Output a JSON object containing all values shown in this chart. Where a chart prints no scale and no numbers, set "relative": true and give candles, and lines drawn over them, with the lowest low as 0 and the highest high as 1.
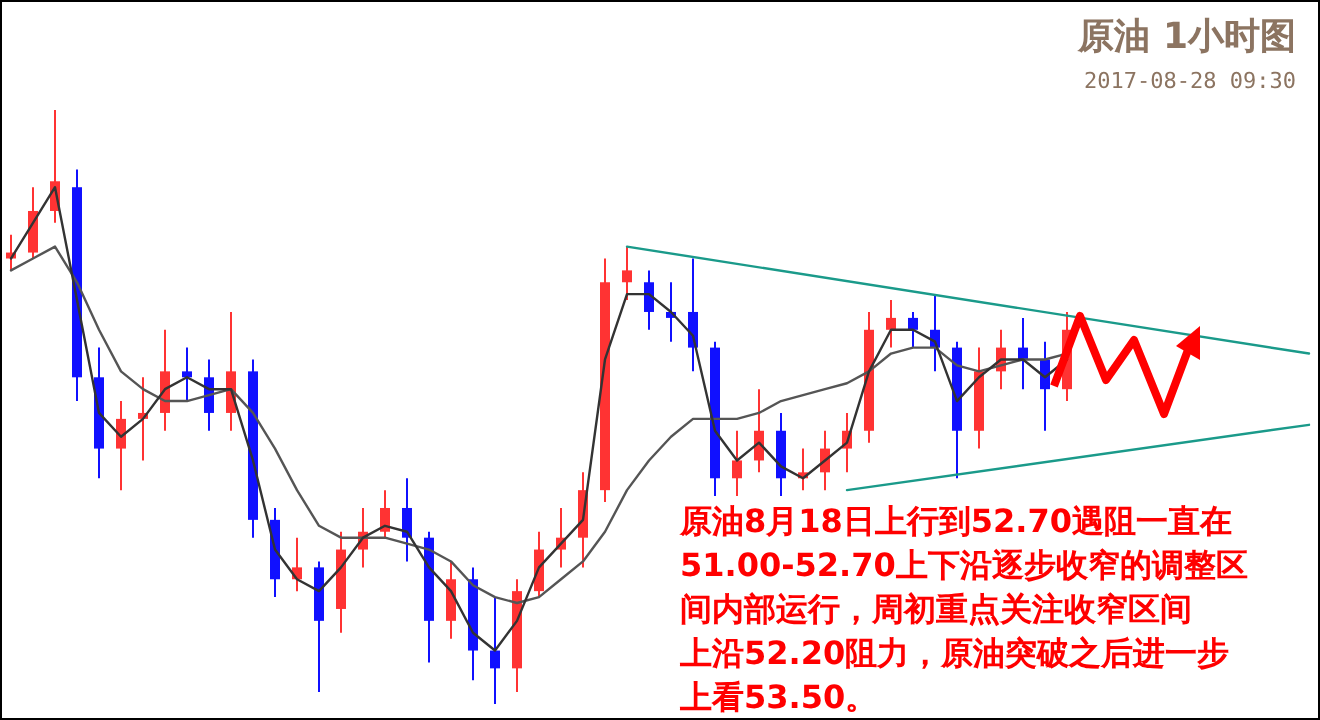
{
  "chart_data": {
    "type": "candlestick",
    "relative": true,
    "title": "原油 1小时图",
    "subtitle": "2017-08-28 09:30",
    "categories": [
      null,
      null,
      null,
      null,
      null,
      null,
      null,
      null,
      null,
      null,
      null,
      null,
      null,
      null,
      null,
      null,
      null,
      null,
      null,
      null,
      null,
      null,
      null,
      null,
      null,
      null,
      null,
      null,
      null,
      null,
      null,
      null,
      null,
      null,
      null,
      null,
      null,
      null,
      null,
      null,
      null,
      null,
      null,
      null,
      null,
      null,
      null,
      null,
      null,
      null,
      null,
      null,
      null,
      null,
      null,
      null,
      null,
      null,
      null,
      null
    ],
    "ohlc": [
      [
        0.75,
        0.79,
        0.73,
        0.76
      ],
      [
        0.76,
        0.87,
        0.75,
        0.83
      ],
      [
        0.83,
        1.0,
        0.81,
        0.88
      ],
      [
        0.87,
        0.9,
        0.51,
        0.55
      ],
      [
        0.55,
        0.6,
        0.38,
        0.43
      ],
      [
        0.43,
        0.51,
        0.36,
        0.48
      ],
      [
        0.48,
        0.55,
        0.41,
        0.49
      ],
      [
        0.49,
        0.63,
        0.46,
        0.56
      ],
      [
        0.56,
        0.6,
        0.51,
        0.55
      ],
      [
        0.55,
        0.58,
        0.46,
        0.49
      ],
      [
        0.49,
        0.66,
        0.46,
        0.56
      ],
      [
        0.56,
        0.58,
        0.28,
        0.31
      ],
      [
        0.31,
        0.33,
        0.18,
        0.21
      ],
      [
        0.21,
        0.28,
        0.19,
        0.23
      ],
      [
        0.23,
        0.24,
        0.02,
        0.14
      ],
      [
        0.16,
        0.29,
        0.12,
        0.26
      ],
      [
        0.26,
        0.33,
        0.23,
        0.29
      ],
      [
        0.29,
        0.36,
        0.28,
        0.33
      ],
      [
        0.33,
        0.38,
        0.24,
        0.28
      ],
      [
        0.28,
        0.29,
        0.07,
        0.14
      ],
      [
        0.14,
        0.24,
        0.11,
        0.21
      ],
      [
        0.21,
        0.23,
        0.04,
        0.09
      ],
      [
        0.09,
        0.18,
        0,
        0.06
      ],
      [
        0.06,
        0.21,
        0.02,
        0.19
      ],
      [
        0.19,
        0.29,
        0.18,
        0.26
      ],
      [
        0.26,
        0.33,
        0.23,
        0.28
      ],
      [
        0.28,
        0.39,
        0.23,
        0.36
      ],
      [
        0.36,
        0.75,
        0.34,
        0.71
      ],
      [
        0.71,
        0.77,
        0.68,
        0.73
      ],
      [
        0.71,
        0.73,
        0.63,
        0.66
      ],
      [
        0.66,
        0.71,
        0.61,
        0.65
      ],
      [
        0.66,
        0.75,
        0.56,
        0.6
      ],
      [
        0.6,
        0.61,
        0.35,
        0.38
      ],
      [
        0.38,
        0.46,
        0.35,
        0.41
      ],
      [
        0.41,
        0.53,
        0.39,
        0.46
      ],
      [
        0.46,
        0.49,
        0.35,
        0.38
      ],
      [
        0.38,
        0.43,
        0.36,
        0.39
      ],
      [
        0.39,
        0.46,
        0.36,
        0.43
      ],
      [
        0.43,
        0.49,
        0.39,
        0.46
      ],
      [
        0.46,
        0.66,
        0.44,
        0.63
      ],
      [
        0.63,
        0.68,
        0.6,
        0.65
      ],
      [
        0.65,
        0.66,
        0.6,
        0.63
      ],
      [
        0.63,
        0.69,
        0.56,
        0.6
      ],
      [
        0.6,
        0.61,
        0.38,
        0.46
      ],
      [
        0.46,
        0.6,
        0.43,
        0.56
      ],
      [
        0.56,
        0.63,
        0.53,
        0.6
      ],
      [
        0.6,
        0.65,
        0.53,
        0.58
      ],
      [
        0.58,
        0.61,
        0.46,
        0.53
      ],
      [
        0.53,
        0.66,
        0.51,
        0.63
      ],
      null,
      null,
      null,
      null,
      null,
      null,
      null,
      null,
      null,
      null,
      null
    ],
    "series": [
      {
        "type": "line",
        "color": "#555555",
        "values": [
          0.73,
          0.75,
          0.77,
          0.71,
          0.63,
          0.56,
          0.53,
          0.51,
          0.51,
          0.52,
          0.53,
          0.49,
          0.43,
          0.36,
          0.3,
          0.28,
          0.28,
          0.28,
          0.27,
          0.26,
          0.24,
          0.2,
          0.18,
          0.17,
          0.18,
          0.21,
          0.24,
          0.29,
          0.36,
          0.41,
          0.45,
          0.48,
          0.48,
          0.48,
          0.49,
          0.51,
          0.52,
          0.53,
          0.54,
          0.56,
          0.59,
          0.6,
          0.6,
          0.57,
          0.56,
          0.57,
          0.58,
          0.58,
          0.59,
          null,
          null,
          null,
          null,
          null,
          null,
          null,
          null,
          null,
          null,
          null
        ]
      },
      {
        "type": "line",
        "color": "#333333",
        "values": [
          0.75,
          0.81,
          0.87,
          0.68,
          0.49,
          0.45,
          0.48,
          0.53,
          0.55,
          0.53,
          0.53,
          0.41,
          0.26,
          0.21,
          0.19,
          0.23,
          0.28,
          0.3,
          0.29,
          0.23,
          0.19,
          0.12,
          0.09,
          0.14,
          0.23,
          0.27,
          0.31,
          0.58,
          0.69,
          0.69,
          0.66,
          0.62,
          0.46,
          0.41,
          0.44,
          0.4,
          0.38,
          0.41,
          0.44,
          0.56,
          0.63,
          0.63,
          0.61,
          0.51,
          0.55,
          0.58,
          0.58,
          0.55,
          0.58,
          null,
          null,
          null,
          null,
          null,
          null,
          null,
          null,
          null,
          null,
          null
        ]
      },
      {
        "type": "line",
        "color": "#1a9a8a",
        "values": [
          null,
          null,
          null,
          null,
          null,
          null,
          null,
          null,
          null,
          null,
          null,
          null,
          null,
          null,
          null,
          null,
          null,
          null,
          null,
          null,
          null,
          null,
          null,
          null,
          null,
          null,
          null,
          null,
          0.77,
          null,
          null,
          null,
          null,
          null,
          null,
          null,
          null,
          null,
          null,
          null,
          null,
          null,
          null,
          null,
          null,
          null,
          null,
          null,
          null,
          null,
          null,
          null,
          null,
          null,
          null,
          null,
          null,
          null,
          null,
          0.59
        ]
      },
      {
        "type": "line",
        "color": "#1a9a8a",
        "values": [
          null,
          null,
          null,
          null,
          null,
          null,
          null,
          null,
          null,
          null,
          null,
          null,
          null,
          null,
          null,
          null,
          null,
          null,
          null,
          null,
          null,
          null,
          null,
          null,
          null,
          null,
          null,
          null,
          null,
          null,
          null,
          null,
          null,
          null,
          null,
          null,
          null,
          null,
          0.36,
          null,
          null,
          null,
          null,
          null,
          null,
          null,
          null,
          null,
          null,
          null,
          null,
          null,
          null,
          null,
          null,
          null,
          null,
          null,
          null,
          0.47
        ]
      }
    ],
    "annotations": [
      "原油8月18日上行到52.70遇阻一直在",
      "51.00-52.70上下沿逐步收窄的调整区",
      "间内部运行，周初重点关注收窄区间",
      "上沿52.20阻力，原油突破之后进一步",
      "上看53.50。"
    ]
  }
}
